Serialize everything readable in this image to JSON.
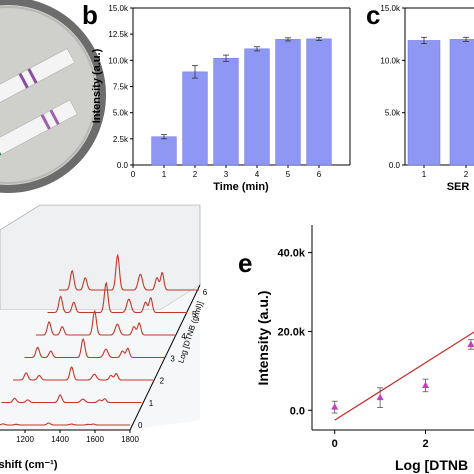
{
  "panels": {
    "b": "b",
    "c": "c",
    "e": "e"
  },
  "colors": {
    "bar": "#8f97f4",
    "bar_edge": "#6c74d8",
    "spectrum": "#c0392b",
    "fit_line": "#c62828",
    "points": "#c040c0",
    "floor": "#e9ecef"
  },
  "chart_data": [
    {
      "id": "b",
      "type": "bar",
      "xlabel": "Time (min)",
      "ylabel": "Intensity (a.u.)",
      "categories": [
        "1",
        "2",
        "3",
        "4",
        "5",
        "6"
      ],
      "values": [
        2700,
        8900,
        10200,
        11100,
        12000,
        12050
      ],
      "errors": [
        200,
        600,
        300,
        200,
        150,
        150
      ],
      "ylim": [
        0,
        15000
      ],
      "yticks": [
        "0.0",
        "2.5k",
        "5.0k",
        "7.5k",
        "10.0k",
        "12.5k",
        "15.0k"
      ],
      "xticks": [
        "0",
        "1",
        "2",
        "3",
        "4",
        "5",
        "6"
      ]
    },
    {
      "id": "c",
      "type": "bar",
      "xlabel": "SER",
      "ylabel": "",
      "categories": [
        "1",
        "2"
      ],
      "values": [
        11900,
        12000
      ],
      "errors": [
        300,
        200
      ],
      "ylim": [
        0,
        15000
      ],
      "yticks": [
        "0.0",
        "5.0k",
        "10.0k",
        "15.0k"
      ]
    },
    {
      "id": "d",
      "type": "line",
      "xlabel": "shift (cm⁻¹)",
      "depth_label": "Log [DTNB (g/ml)]",
      "xticks": [
        "1200",
        "1400",
        "1600",
        "1800"
      ],
      "depth_ticks": [
        "0",
        "1",
        "2",
        "3",
        "4",
        "5",
        "6"
      ]
    },
    {
      "id": "e",
      "type": "scatter",
      "xlabel": "Log [DTNB",
      "ylabel": "Intensity (a.u.)",
      "yticks": [
        "0.0",
        "20.0k",
        "40.0k"
      ],
      "xticks": [
        "0",
        "2"
      ],
      "ylim": [
        -5000,
        47000
      ],
      "xlim": [
        -0.5,
        3.2
      ],
      "points": [
        {
          "x": 0,
          "y": 800,
          "err": 1500
        },
        {
          "x": 1,
          "y": 3200,
          "err": 2500
        },
        {
          "x": 2,
          "y": 6300,
          "err": 1600
        },
        {
          "x": 3,
          "y": 16700,
          "err": 1200
        }
      ],
      "fit": {
        "x": [
          0,
          3.2
        ],
        "y": [
          -2500,
          20800
        ]
      }
    }
  ]
}
